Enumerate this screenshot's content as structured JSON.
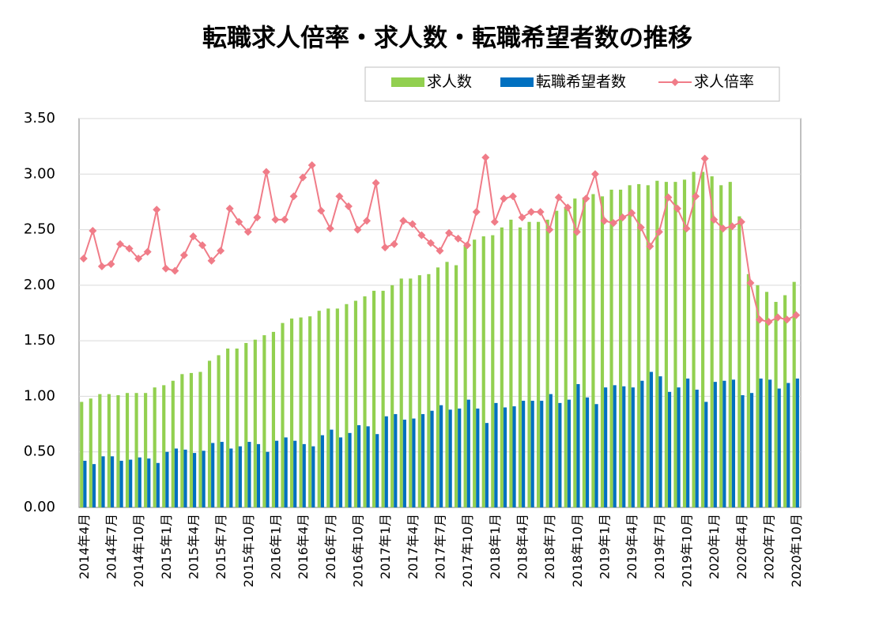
{
  "chart_data": {
    "type": "bar",
    "title": "転職求人倍率・求人数・転職希望者数の推移",
    "categories": [
      "2014年4月",
      null,
      null,
      "2014年7月",
      null,
      null,
      "2014年10月",
      null,
      null,
      "2015年1月",
      null,
      null,
      "2015年4月",
      null,
      null,
      "2015年7月",
      null,
      null,
      "2015年10月",
      null,
      null,
      "2016年1月",
      null,
      null,
      "2016年4月",
      null,
      null,
      "2016年7月",
      null,
      null,
      "2016年10月",
      null,
      null,
      "2017年1月",
      null,
      null,
      "2017年4月",
      null,
      null,
      "2017年7月",
      null,
      null,
      "2017年10月",
      null,
      null,
      "2018年1月",
      null,
      null,
      "2018年4月",
      null,
      null,
      "2018年7月",
      null,
      null,
      "2018年10月",
      null,
      null,
      "2019年1月",
      null,
      null,
      "2019年4月",
      null,
      null,
      "2019年7月",
      null,
      null,
      "2019年10月",
      null,
      null,
      "2020年1月",
      null,
      null,
      "2020年4月",
      null,
      null,
      "2020年7月",
      null,
      null,
      "2020年10月"
    ],
    "series": [
      {
        "name": "求人数",
        "type": "bar",
        "color": "#92d050",
        "values": [
          0.95,
          0.98,
          1.02,
          1.02,
          1.01,
          1.03,
          1.03,
          1.03,
          1.08,
          1.1,
          1.14,
          1.2,
          1.21,
          1.22,
          1.32,
          1.37,
          1.43,
          1.43,
          1.48,
          1.51,
          1.55,
          1.58,
          1.66,
          1.7,
          1.71,
          1.72,
          1.77,
          1.79,
          1.79,
          1.83,
          1.86,
          1.9,
          1.95,
          1.95,
          2.0,
          2.06,
          2.06,
          2.09,
          2.1,
          2.16,
          2.21,
          2.18,
          2.36,
          2.41,
          2.44,
          2.45,
          2.52,
          2.59,
          2.52,
          2.57,
          2.57,
          2.59,
          2.67,
          2.7,
          2.78,
          2.79,
          2.82,
          2.8,
          2.86,
          2.86,
          2.9,
          2.91,
          2.9,
          2.94,
          2.93,
          2.93,
          2.95,
          3.02,
          3.02,
          2.98,
          2.9,
          2.93,
          2.62,
          2.1,
          2.0,
          1.94,
          1.85,
          1.91,
          2.03
        ]
      },
      {
        "name": "転職希望者数",
        "type": "bar",
        "color": "#0070c0",
        "values": [
          0.42,
          0.39,
          0.46,
          0.46,
          0.42,
          0.43,
          0.45,
          0.44,
          0.4,
          0.5,
          0.53,
          0.52,
          0.49,
          0.51,
          0.58,
          0.59,
          0.53,
          0.55,
          0.59,
          0.57,
          0.5,
          0.6,
          0.63,
          0.6,
          0.57,
          0.55,
          0.65,
          0.7,
          0.63,
          0.67,
          0.74,
          0.73,
          0.66,
          0.82,
          0.84,
          0.79,
          0.8,
          0.84,
          0.87,
          0.92,
          0.88,
          0.89,
          0.97,
          0.89,
          0.76,
          0.94,
          0.9,
          0.91,
          0.96,
          0.96,
          0.96,
          1.02,
          0.94,
          0.97,
          1.11,
          0.99,
          0.93,
          1.08,
          1.1,
          1.09,
          1.08,
          1.14,
          1.22,
          1.18,
          1.04,
          1.08,
          1.16,
          1.06,
          0.95,
          1.13,
          1.14,
          1.15,
          1.01,
          1.03,
          1.16,
          1.15,
          1.07,
          1.12,
          1.16
        ]
      },
      {
        "name": "求人倍率",
        "type": "line",
        "color": "#f07c88",
        "values": [
          2.24,
          2.49,
          2.17,
          2.19,
          2.37,
          2.33,
          2.24,
          2.3,
          2.68,
          2.15,
          2.13,
          2.27,
          2.44,
          2.36,
          2.22,
          2.31,
          2.69,
          2.57,
          2.48,
          2.61,
          3.02,
          2.59,
          2.59,
          2.8,
          2.97,
          3.08,
          2.67,
          2.51,
          2.8,
          2.71,
          2.5,
          2.58,
          2.92,
          2.34,
          2.37,
          2.58,
          2.55,
          2.45,
          2.38,
          2.31,
          2.47,
          2.42,
          2.36,
          2.66,
          3.15,
          2.57,
          2.78,
          2.8,
          2.61,
          2.66,
          2.66,
          2.5,
          2.79,
          2.7,
          2.48,
          2.78,
          3.0,
          2.58,
          2.56,
          2.61,
          2.65,
          2.52,
          2.35,
          2.48,
          2.79,
          2.69,
          2.51,
          2.8,
          3.14,
          2.59,
          2.51,
          2.53,
          2.57,
          2.02,
          1.69,
          1.67,
          1.71,
          1.69,
          1.73
        ]
      }
    ],
    "ylim": [
      0,
      3.5
    ],
    "yticks": [
      {
        "value": 0,
        "label": "0.00"
      },
      {
        "value": 0.5,
        "label": "0.50"
      },
      {
        "value": 1,
        "label": "1.00"
      },
      {
        "value": 1.5,
        "label": "1.50"
      },
      {
        "value": 2,
        "label": "2.00"
      },
      {
        "value": 2.5,
        "label": "2.50"
      },
      {
        "value": 3,
        "label": "3.00"
      },
      {
        "value": 3.5,
        "label": "3.50"
      }
    ],
    "grid": true,
    "legend": "top"
  }
}
